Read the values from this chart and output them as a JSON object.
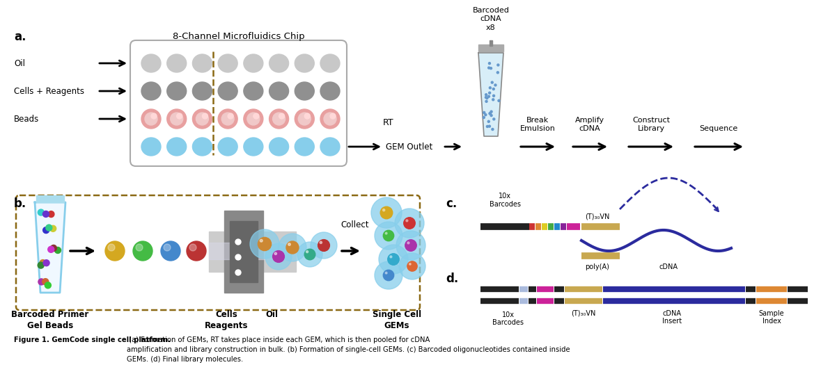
{
  "bg_color": "#ffffff",
  "label_a": "a.",
  "label_b": "b.",
  "label_c": "c.",
  "label_d": "d.",
  "chip_title": "8-Channel Microfluidics Chip",
  "input_labels": [
    "Oil",
    "Cells + Reagents",
    "Beads"
  ],
  "gem_outlet": "GEM Outlet",
  "rt_label": "RT",
  "barcoded_cdna": "Barcoded\ncDNA\nx8",
  "step_labels": [
    "Break\nEmulsion",
    "Amplify\ncDNA",
    "Construct\nLibrary",
    "Sequence"
  ],
  "collect_label": "Collect",
  "figure_caption_bold": "Figure 1. GemCode single cell platform.",
  "figure_caption_normal": " (a) Formation of GEMs, RT takes place inside each GEM, which is then pooled for cDNA\namplification and library construction in bulk. (b) Formation of single-cell GEMs. (c) Barcoded oligonucleotides contained inside\nGEMs. (d) Final library molecules.",
  "color_cyan": "#87ceeb",
  "color_dark_blue": "#2b2b9e",
  "color_brown_dashed": "#8B6914",
  "color_chip_gray_light": "#c8c8c8",
  "color_chip_gray_mid": "#909090",
  "color_chip_bead_outer": "#e8a0a0",
  "color_chip_bead_inner": "#f0c8c8",
  "color_chip_blue": "#87ceeb",
  "seg_colors_c": [
    "#cc3333",
    "#dd8833",
    "#ddcc22",
    "#44aa44",
    "#2288cc",
    "#882299",
    "#dd2299"
  ],
  "seg_colors_d": [
    "#cc3333",
    "#aabbee",
    "#dd8833",
    "#ddcc22",
    "#44aa44",
    "#2288cc",
    "#882299",
    "#dd2299"
  ],
  "color_tan": "#c8a850",
  "color_navy": "#1a1a7a",
  "color_orange": "#dd8833"
}
